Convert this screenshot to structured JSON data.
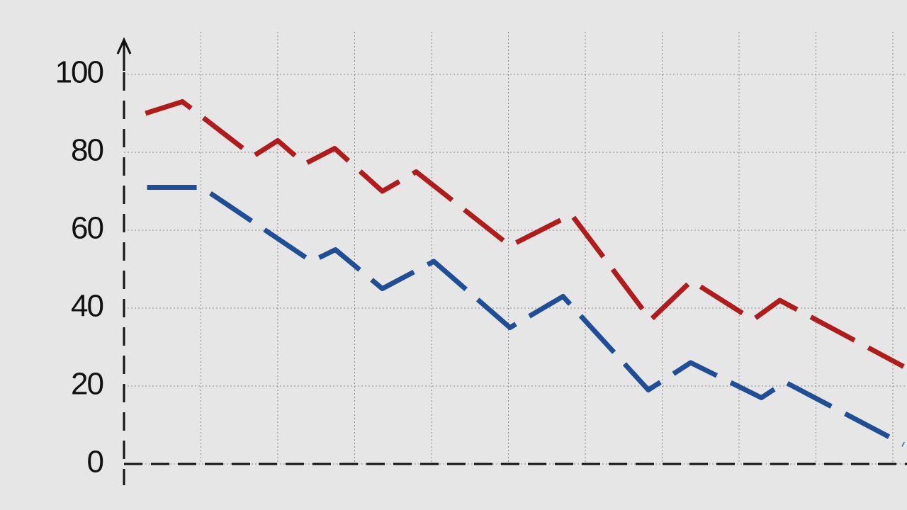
{
  "chart_data": {
    "type": "line",
    "xlim": [
      0,
      10.2
    ],
    "xticks": [
      1,
      2,
      3,
      4,
      5,
      6,
      7,
      8,
      9,
      10
    ],
    "ylim": [
      0,
      100
    ],
    "yticks": [
      0,
      20,
      40,
      60,
      80,
      100
    ],
    "grid": true,
    "series": [
      {
        "color": "#b01c1c",
        "x": [
          0.28,
          0.76,
          1.68,
          2.0,
          2.35,
          2.74,
          3.36,
          3.8,
          5.02,
          5.82,
          6.85,
          7.38,
          8.18,
          8.53,
          10.14
        ],
        "values": [
          90,
          93,
          79,
          83,
          77,
          81,
          70,
          75,
          56,
          64,
          37,
          47,
          37,
          42,
          25
        ]
      },
      {
        "color": "#1f4e96",
        "x": [
          0.3,
          1.01,
          2.44,
          2.75,
          3.36,
          4.03,
          5.02,
          5.71,
          6.82,
          7.37,
          8.29,
          8.6,
          10.14
        ],
        "values": [
          71,
          71,
          52,
          55,
          45,
          52,
          35,
          43,
          19,
          26,
          17,
          21,
          5
        ]
      }
    ]
  }
}
